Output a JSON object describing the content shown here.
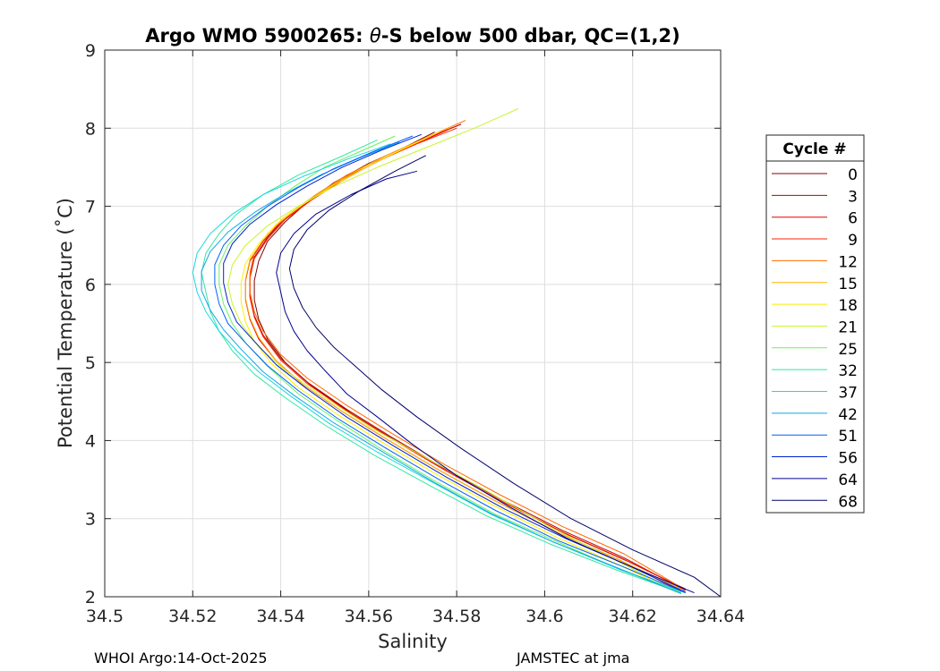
{
  "chart_data": {
    "type": "line",
    "title": {
      "prefix": "Argo WMO 5900265: ",
      "theta": "θ",
      "suffix": "-S below 500 dbar,  QC=(1,2)"
    },
    "xlabel": "Salinity",
    "ylabel": "Potential Temperature (˚C)",
    "xlim": [
      34.5,
      34.64
    ],
    "ylim": [
      2,
      9
    ],
    "xticks": [
      34.5,
      34.52,
      34.54,
      34.56,
      34.58,
      34.6,
      34.62,
      34.64
    ],
    "yticks": [
      2,
      3,
      4,
      5,
      6,
      7,
      8,
      9
    ],
    "xtick_labels": [
      "34.5",
      "34.52",
      "34.54",
      "34.56",
      "34.58",
      "34.6",
      "34.62",
      "34.64"
    ],
    "ytick_labels": [
      "2",
      "3",
      "4",
      "5",
      "6",
      "7",
      "8",
      "9"
    ],
    "grid": true,
    "legend": {
      "title": "Cycle #",
      "placement": "right",
      "entries": [
        {
          "label": "0",
          "color": "#800000"
        },
        {
          "label": "3",
          "color": "#b40000"
        },
        {
          "label": "6",
          "color": "#e60000"
        },
        {
          "label": "9",
          "color": "#ff2000"
        },
        {
          "label": "12",
          "color": "#ff6a00"
        },
        {
          "label": "15",
          "color": "#ffb400"
        },
        {
          "label": "18",
          "color": "#ffee00"
        },
        {
          "label": "21",
          "color": "#c8f52a"
        },
        {
          "label": "25",
          "color": "#6cf060"
        },
        {
          "label": "32",
          "color": "#2ee8a0"
        },
        {
          "label": "37",
          "color": "#1ad8e0"
        },
        {
          "label": "42",
          "color": "#10a8e8"
        },
        {
          "label": "51",
          "color": "#0060ff"
        },
        {
          "label": "56",
          "color": "#0020d0"
        },
        {
          "label": "64",
          "color": "#000090"
        },
        {
          "label": "68",
          "color": "#00006a"
        }
      ]
    },
    "series": [
      {
        "name": "0",
        "color": "#800000",
        "x": [
          34.575,
          34.568,
          34.56,
          34.552,
          34.546,
          34.541,
          34.537,
          34.535,
          34.534,
          34.534,
          34.535,
          34.537,
          34.541,
          34.547,
          34.556,
          34.566,
          34.578,
          34.591,
          34.605,
          34.619,
          34.632
        ],
        "y": [
          7.95,
          7.75,
          7.55,
          7.3,
          7.05,
          6.8,
          6.55,
          6.3,
          6.05,
          5.8,
          5.55,
          5.3,
          5.0,
          4.7,
          4.35,
          4.0,
          3.6,
          3.2,
          2.8,
          2.45,
          2.1
        ]
      },
      {
        "name": "3",
        "color": "#b40000",
        "x": [
          34.581,
          34.572,
          34.563,
          34.554,
          34.547,
          34.541,
          34.537,
          34.534,
          34.533,
          34.533,
          34.534,
          34.536,
          34.54,
          34.546,
          34.555,
          34.565,
          34.577,
          34.59,
          34.604,
          34.618,
          34.632
        ],
        "y": [
          8.05,
          7.85,
          7.6,
          7.35,
          7.1,
          6.85,
          6.6,
          6.35,
          6.1,
          5.85,
          5.6,
          5.35,
          5.05,
          4.75,
          4.4,
          4.05,
          3.65,
          3.25,
          2.85,
          2.5,
          2.08
        ]
      },
      {
        "name": "6",
        "color": "#e60000",
        "x": [
          34.578,
          34.57,
          34.561,
          34.553,
          34.546,
          34.54,
          34.536,
          34.533,
          34.532,
          34.532,
          34.533,
          34.535,
          34.539,
          34.545,
          34.554,
          34.564,
          34.576,
          34.589,
          34.603,
          34.617,
          34.631
        ],
        "y": [
          7.98,
          7.78,
          7.55,
          7.3,
          7.05,
          6.8,
          6.55,
          6.3,
          6.05,
          5.8,
          5.55,
          5.3,
          5.02,
          4.72,
          4.37,
          4.02,
          3.62,
          3.22,
          2.82,
          2.47,
          2.07
        ]
      },
      {
        "name": "9",
        "color": "#ff2000",
        "x": [
          34.58,
          34.571,
          34.562,
          34.554,
          34.547,
          34.541,
          34.537,
          34.534,
          34.533,
          34.533,
          34.534,
          34.536,
          34.54,
          34.546,
          34.555,
          34.565,
          34.577,
          34.59,
          34.604,
          34.618,
          34.632
        ],
        "y": [
          8.0,
          7.8,
          7.58,
          7.33,
          7.08,
          6.83,
          6.58,
          6.33,
          6.08,
          5.83,
          5.58,
          5.33,
          5.03,
          4.73,
          4.38,
          4.03,
          3.63,
          3.23,
          2.83,
          2.48,
          2.09
        ]
      },
      {
        "name": "12",
        "color": "#ff6a00",
        "x": [
          34.582,
          34.573,
          34.564,
          34.555,
          34.548,
          34.542,
          34.537,
          34.534,
          34.533,
          34.533,
          34.534,
          34.536,
          34.54,
          34.546,
          34.555,
          34.565,
          34.577,
          34.59,
          34.604,
          34.618,
          34.631
        ],
        "y": [
          8.1,
          7.88,
          7.65,
          7.4,
          7.15,
          6.9,
          6.65,
          6.4,
          6.15,
          5.9,
          5.65,
          5.4,
          5.1,
          4.8,
          4.45,
          4.1,
          3.7,
          3.3,
          2.9,
          2.55,
          2.12
        ]
      },
      {
        "name": "15",
        "color": "#ffb400",
        "x": [
          34.579,
          34.57,
          34.561,
          34.553,
          34.546,
          34.54,
          34.536,
          34.533,
          34.532,
          34.532,
          34.533,
          34.535,
          34.539,
          34.545,
          34.554,
          34.564,
          34.576,
          34.589,
          34.603,
          34.617,
          34.631
        ],
        "y": [
          8.02,
          7.8,
          7.57,
          7.32,
          7.07,
          6.82,
          6.57,
          6.32,
          6.07,
          5.82,
          5.57,
          5.32,
          5.02,
          4.72,
          4.37,
          4.02,
          3.62,
          3.22,
          2.82,
          2.47,
          2.1
        ]
      },
      {
        "name": "18",
        "color": "#ffee00",
        "x": [
          34.576,
          34.568,
          34.56,
          34.552,
          34.545,
          34.539,
          34.535,
          34.532,
          34.531,
          34.531,
          34.532,
          34.534,
          34.538,
          34.544,
          34.553,
          34.563,
          34.575,
          34.588,
          34.602,
          34.616,
          34.63
        ],
        "y": [
          7.95,
          7.74,
          7.52,
          7.27,
          7.02,
          6.77,
          6.52,
          6.27,
          6.02,
          5.77,
          5.52,
          5.27,
          4.98,
          4.68,
          4.33,
          3.98,
          3.58,
          3.18,
          2.78,
          2.43,
          2.06
        ]
      },
      {
        "name": "21",
        "color": "#c8f52a",
        "x": [
          34.594,
          34.584,
          34.573,
          34.562,
          34.552,
          34.544,
          34.537,
          34.532,
          34.529,
          34.528,
          34.529,
          34.531,
          34.535,
          34.541,
          34.55,
          34.561,
          34.574,
          34.587,
          34.601,
          34.615,
          34.63
        ],
        "y": [
          8.25,
          8.0,
          7.75,
          7.5,
          7.25,
          7.0,
          6.75,
          6.5,
          6.25,
          6.0,
          5.75,
          5.5,
          5.2,
          4.9,
          4.55,
          4.15,
          3.75,
          3.35,
          2.9,
          2.5,
          2.07
        ]
      },
      {
        "name": "25",
        "color": "#6cf060",
        "x": [
          34.566,
          34.558,
          34.55,
          34.543,
          34.537,
          34.532,
          34.528,
          34.526,
          34.526,
          34.527,
          34.529,
          34.532,
          34.537,
          34.544,
          34.553,
          34.564,
          34.576,
          34.589,
          34.603,
          34.617,
          34.631
        ],
        "y": [
          7.9,
          7.7,
          7.5,
          7.25,
          7.0,
          6.75,
          6.5,
          6.25,
          6.0,
          5.75,
          5.5,
          5.25,
          4.95,
          4.6,
          4.25,
          3.85,
          3.45,
          3.05,
          2.7,
          2.35,
          2.06
        ]
      },
      {
        "name": "32",
        "color": "#2ee8a0",
        "x": [
          34.562,
          34.553,
          34.544,
          34.536,
          34.53,
          34.526,
          34.523,
          34.522,
          34.523,
          34.524,
          34.526,
          34.529,
          34.534,
          34.541,
          34.55,
          34.561,
          34.574,
          34.587,
          34.601,
          34.616,
          34.631
        ],
        "y": [
          7.85,
          7.62,
          7.4,
          7.15,
          6.9,
          6.65,
          6.4,
          6.15,
          5.9,
          5.65,
          5.4,
          5.15,
          4.85,
          4.55,
          4.2,
          3.82,
          3.42,
          3.03,
          2.68,
          2.35,
          2.05
        ]
      },
      {
        "name": "37",
        "color": "#1ad8e0",
        "x": [
          34.565,
          34.555,
          34.545,
          34.536,
          34.529,
          34.524,
          34.521,
          34.52,
          34.521,
          34.523,
          34.526,
          34.53,
          34.535,
          34.542,
          34.551,
          34.562,
          34.575,
          34.588,
          34.602,
          34.617,
          34.632
        ],
        "y": [
          7.8,
          7.6,
          7.38,
          7.15,
          6.9,
          6.65,
          6.4,
          6.15,
          5.9,
          5.65,
          5.4,
          5.15,
          4.88,
          4.58,
          4.22,
          3.85,
          3.45,
          3.05,
          2.7,
          2.35,
          2.05
        ]
      },
      {
        "name": "42",
        "color": "#10a8e8",
        "x": [
          34.567,
          34.558,
          34.549,
          34.541,
          34.534,
          34.528,
          34.524,
          34.522,
          34.522,
          34.524,
          34.527,
          34.531,
          34.536,
          34.543,
          34.552,
          34.563,
          34.575,
          34.588,
          34.602,
          34.617,
          34.631
        ],
        "y": [
          7.82,
          7.62,
          7.4,
          7.16,
          6.92,
          6.67,
          6.42,
          6.17,
          5.92,
          5.67,
          5.42,
          5.17,
          4.88,
          4.58,
          4.23,
          3.86,
          3.46,
          3.06,
          2.7,
          2.36,
          2.04
        ]
      },
      {
        "name": "51",
        "color": "#0060ff",
        "x": [
          34.57,
          34.561,
          34.552,
          34.544,
          34.537,
          34.531,
          34.527,
          34.525,
          34.525,
          34.526,
          34.528,
          34.532,
          34.537,
          34.544,
          34.553,
          34.564,
          34.576,
          34.589,
          34.603,
          34.618,
          34.632
        ],
        "y": [
          7.9,
          7.7,
          7.48,
          7.24,
          7.0,
          6.75,
          6.5,
          6.25,
          6.0,
          5.75,
          5.5,
          5.25,
          4.96,
          4.64,
          4.28,
          3.9,
          3.5,
          3.1,
          2.72,
          2.38,
          2.05
        ]
      },
      {
        "name": "56",
        "color": "#0020d0",
        "x": [
          34.572,
          34.563,
          34.554,
          34.546,
          34.539,
          34.533,
          34.529,
          34.527,
          34.527,
          34.528,
          34.53,
          34.534,
          34.539,
          34.546,
          34.555,
          34.566,
          34.578,
          34.591,
          34.605,
          34.619,
          34.632
        ],
        "y": [
          7.92,
          7.72,
          7.5,
          7.26,
          7.02,
          6.77,
          6.52,
          6.27,
          6.02,
          5.77,
          5.52,
          5.27,
          4.97,
          4.66,
          4.3,
          3.92,
          3.52,
          3.12,
          2.74,
          2.4,
          2.06
        ]
      },
      {
        "name": "64",
        "color": "#000090",
        "x": [
          34.571,
          34.564,
          34.556,
          34.548,
          34.543,
          34.54,
          34.539,
          34.54,
          34.541,
          34.543,
          34.546,
          34.55,
          34.555,
          34.562,
          34.57,
          34.58,
          34.592,
          34.605,
          34.619,
          34.634
        ],
        "y": [
          7.45,
          7.35,
          7.15,
          6.9,
          6.65,
          6.4,
          6.15,
          5.9,
          5.65,
          5.4,
          5.15,
          4.9,
          4.6,
          4.3,
          3.95,
          3.55,
          3.15,
          2.75,
          2.4,
          2.05
        ]
      },
      {
        "name": "68",
        "color": "#00006a",
        "x": [
          34.573,
          34.566,
          34.558,
          34.551,
          34.546,
          34.543,
          34.542,
          34.543,
          34.545,
          34.548,
          34.552,
          34.557,
          34.563,
          34.571,
          34.581,
          34.593,
          34.606,
          34.62,
          34.634,
          34.64
        ],
        "y": [
          7.65,
          7.45,
          7.2,
          6.95,
          6.7,
          6.45,
          6.2,
          5.95,
          5.7,
          5.45,
          5.2,
          4.95,
          4.65,
          4.3,
          3.9,
          3.45,
          3.0,
          2.6,
          2.25,
          2.0
        ]
      }
    ]
  },
  "footer": {
    "left": "WHOI Argo:14-Oct-2025",
    "right": "JAMSTEC at jma"
  }
}
